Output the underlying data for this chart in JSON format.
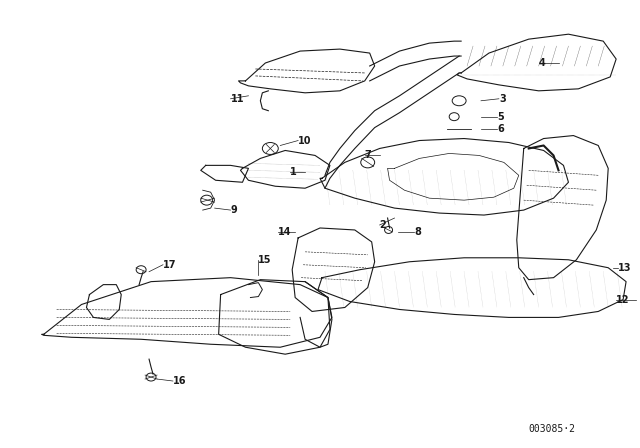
{
  "background_color": "#ffffff",
  "line_color": "#1a1a1a",
  "diagram_code": "003085·2",
  "fig_width": 6.4,
  "fig_height": 4.48,
  "dpi": 100
}
